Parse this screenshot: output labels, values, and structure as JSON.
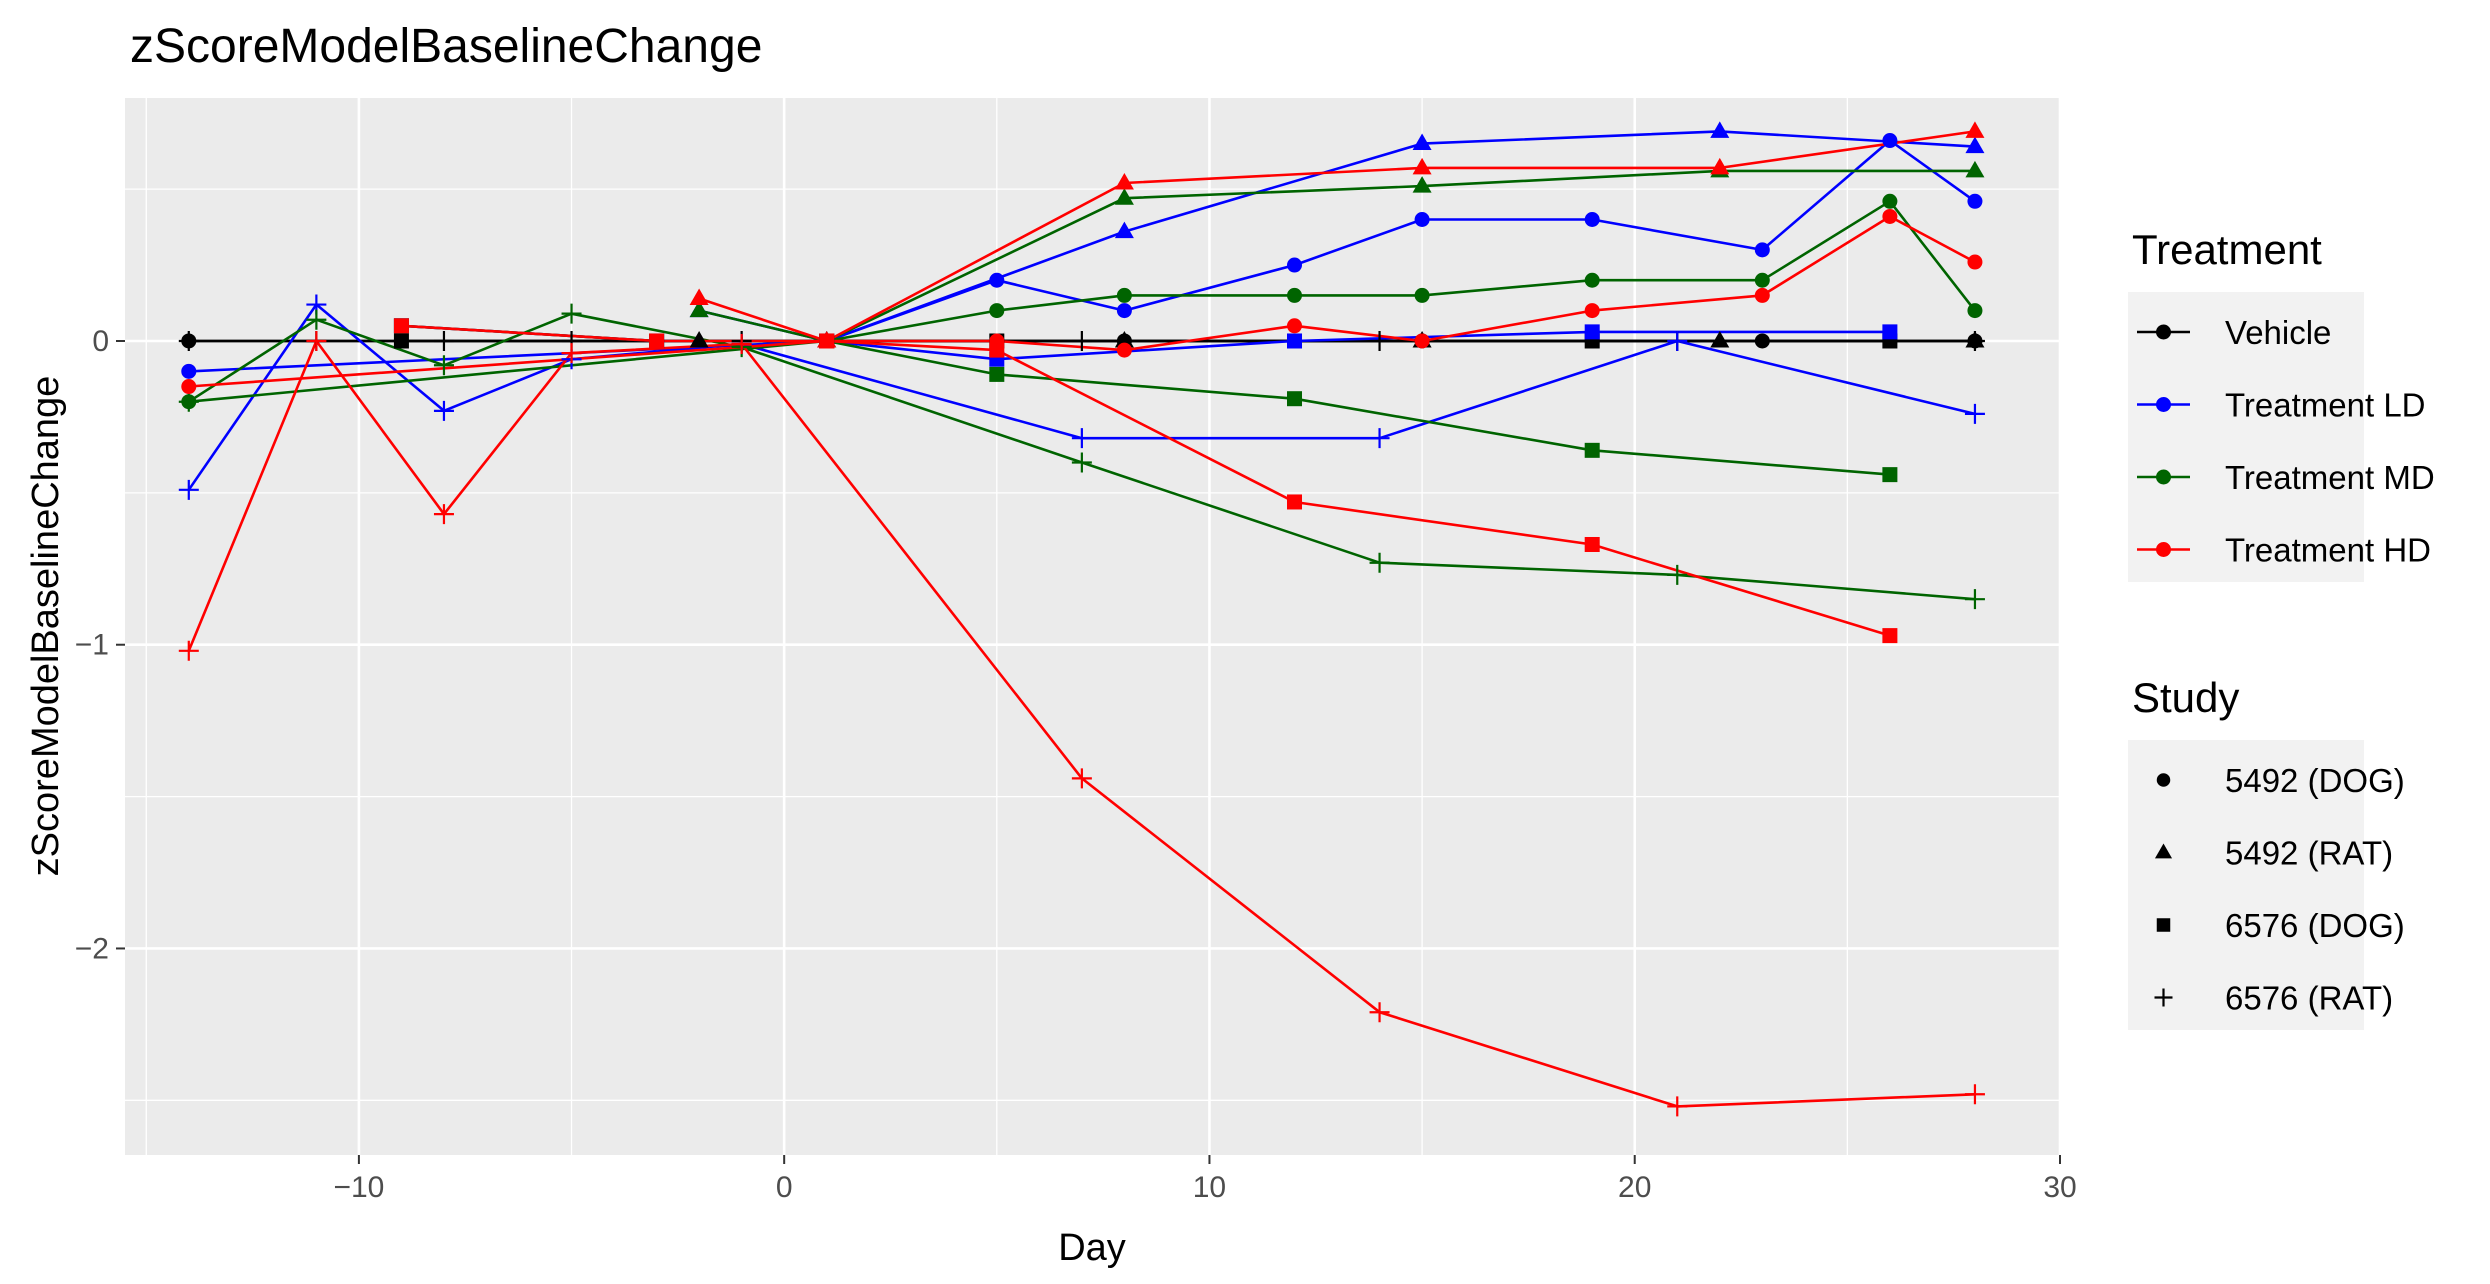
{
  "chart_data": {
    "type": "line",
    "title": "zScoreModelBaselineChange",
    "xlabel": "Day",
    "ylabel": "zScoreModelBaselineChange",
    "xlim": [
      -15.5,
      30
    ],
    "ylim": [
      -2.68,
      0.8
    ],
    "xticks": [
      -10,
      0,
      10,
      20,
      30
    ],
    "yticks": [
      0,
      -1,
      -2
    ],
    "grid": true,
    "legend_position": "right",
    "colors": {
      "Vehicle": "#000000",
      "Treatment LD": "#0000ff",
      "Treatment MD": "#006400",
      "Treatment HD": "#ff0000"
    },
    "legend": {
      "treatment_title": "Treatment",
      "treatment_entries": [
        "Vehicle",
        "Treatment LD",
        "Treatment MD",
        "Treatment HD"
      ],
      "study_title": "Study",
      "study_entries": [
        {
          "label": "5492 (DOG)",
          "shape": "circle"
        },
        {
          "label": "5492 (RAT)",
          "shape": "triangle"
        },
        {
          "label": "6576 (DOG)",
          "shape": "square"
        },
        {
          "label": "6576 (RAT)",
          "shape": "plus"
        }
      ]
    },
    "series": [
      {
        "treatment": "Vehicle",
        "study": "5492 (DOG)",
        "x": [
          -14,
          1,
          5,
          8,
          15,
          19,
          23,
          26,
          28
        ],
        "y": [
          0,
          0,
          0,
          0,
          0,
          0,
          0,
          0,
          0
        ]
      },
      {
        "treatment": "Vehicle",
        "study": "5492 (RAT)",
        "x": [
          -2,
          1,
          8,
          15,
          22,
          28
        ],
        "y": [
          0,
          0,
          0,
          0,
          0,
          0
        ]
      },
      {
        "treatment": "Vehicle",
        "study": "6576 (DOG)",
        "x": [
          -9,
          -3,
          1,
          5,
          12,
          19,
          26
        ],
        "y": [
          0,
          0,
          0,
          0,
          0,
          0,
          0
        ]
      },
      {
        "treatment": "Vehicle",
        "study": "6576 (RAT)",
        "x": [
          -14,
          -11,
          -8,
          -5,
          -1,
          7,
          14,
          21,
          28
        ],
        "y": [
          0,
          0,
          0,
          0,
          0,
          0,
          0,
          0,
          0
        ]
      },
      {
        "treatment": "Treatment LD",
        "study": "5492 (DOG)",
        "x": [
          -14,
          1,
          5,
          8,
          12,
          15,
          19,
          23,
          26,
          28
        ],
        "y": [
          -0.1,
          0,
          0.2,
          0.1,
          0.25,
          0.4,
          0.4,
          0.3,
          0.66,
          0.46
        ]
      },
      {
        "treatment": "Treatment LD",
        "study": "5492 (RAT)",
        "x": [
          -2,
          1,
          8,
          15,
          22,
          28
        ],
        "y": [
          0.1,
          0,
          0.36,
          0.65,
          0.69,
          0.64
        ]
      },
      {
        "treatment": "Treatment LD",
        "study": "6576 (DOG)",
        "x": [
          -9,
          -3,
          1,
          5,
          12,
          19,
          26
        ],
        "y": [
          0.05,
          0,
          0,
          -0.06,
          0,
          0.03,
          0.03
        ]
      },
      {
        "treatment": "Treatment LD",
        "study": "6576 (RAT)",
        "x": [
          -14,
          -11,
          -8,
          -5,
          -1,
          7,
          14,
          21,
          28
        ],
        "y": [
          -0.49,
          0.12,
          -0.23,
          -0.06,
          -0.01,
          -0.32,
          -0.32,
          0,
          -0.24
        ]
      },
      {
        "treatment": "Treatment MD",
        "study": "5492 (DOG)",
        "x": [
          -14,
          1,
          5,
          8,
          12,
          15,
          19,
          23,
          26,
          28
        ],
        "y": [
          -0.2,
          0,
          0.1,
          0.15,
          0.15,
          0.15,
          0.2,
          0.2,
          0.46,
          0.1
        ]
      },
      {
        "treatment": "Treatment MD",
        "study": "5492 (RAT)",
        "x": [
          -2,
          1,
          8,
          15,
          22,
          28
        ],
        "y": [
          0.1,
          0,
          0.47,
          0.51,
          0.56,
          0.56
        ]
      },
      {
        "treatment": "Treatment MD",
        "study": "6576 (DOG)",
        "x": [
          -9,
          -3,
          1,
          5,
          12,
          19,
          26
        ],
        "y": [
          0.05,
          0,
          0,
          -0.11,
          -0.19,
          -0.36,
          -0.44
        ]
      },
      {
        "treatment": "Treatment MD",
        "study": "6576 (RAT)",
        "x": [
          -14,
          -11,
          -8,
          -5,
          -1,
          7,
          14,
          21,
          28
        ],
        "y": [
          -0.2,
          0.07,
          -0.08,
          0.09,
          -0.02,
          -0.4,
          -0.73,
          -0.77,
          -0.85
        ]
      },
      {
        "treatment": "Treatment HD",
        "study": "5492 (DOG)",
        "x": [
          -14,
          1,
          5,
          8,
          12,
          15,
          19,
          23,
          26,
          28
        ],
        "y": [
          -0.15,
          0,
          0,
          -0.03,
          0.05,
          0,
          0.1,
          0.15,
          0.41,
          0.26
        ]
      },
      {
        "treatment": "Treatment HD",
        "study": "5492 (RAT)",
        "x": [
          -2,
          1,
          8,
          15,
          22,
          28
        ],
        "y": [
          0.14,
          0,
          0.52,
          0.57,
          0.57,
          0.69
        ]
      },
      {
        "treatment": "Treatment HD",
        "study": "6576 (DOG)",
        "x": [
          -9,
          -3,
          1,
          5,
          12,
          19,
          26
        ],
        "y": [
          0.05,
          0,
          0,
          -0.03,
          -0.53,
          -0.67,
          -0.97
        ]
      },
      {
        "treatment": "Treatment HD",
        "study": "6576 (RAT)",
        "x": [
          -14,
          -11,
          -8,
          -5,
          -1,
          7,
          14,
          21,
          28
        ],
        "y": [
          -1.02,
          0,
          -0.57,
          -0.04,
          -0.01,
          -1.44,
          -2.21,
          -2.52,
          -2.48
        ]
      }
    ]
  }
}
